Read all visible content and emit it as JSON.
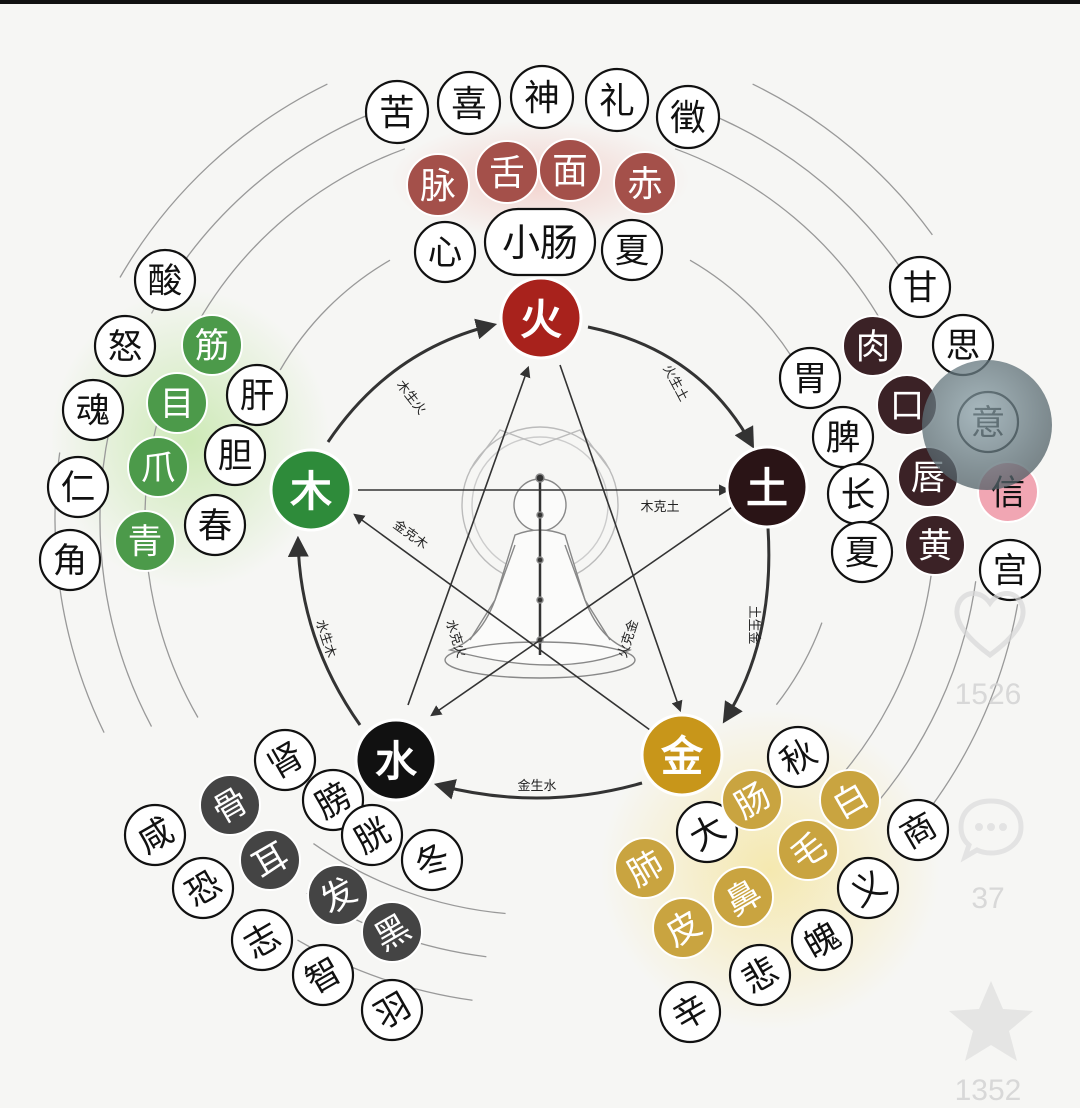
{
  "elements": {
    "fire": {
      "label": "火",
      "color": "#b3261e"
    },
    "earth": {
      "label": "土",
      "color": "#2a1416"
    },
    "metal": {
      "label": "金",
      "color": "#c8961a"
    },
    "water": {
      "label": "水",
      "color": "#111111"
    },
    "wood": {
      "label": "木",
      "color": "#2e8b3a"
    }
  },
  "arrows": {
    "fire_earth": "火生土",
    "earth_metal": "土生金",
    "metal_water": "金生水",
    "water_wood": "水生木",
    "wood_fire": "木生火",
    "wood_earth": "木克土",
    "metal_wood": "金克木",
    "water_fire": "水克火",
    "fire_metal": "火克金"
  },
  "groups": {
    "fire": {
      "outer": [
        "苦",
        "喜",
        "神",
        "礼",
        "徵"
      ],
      "mid": [
        "脉",
        "舌",
        "面",
        "赤"
      ],
      "inner": [
        "心",
        "小肠",
        "夏"
      ]
    },
    "earth": [
      "甘",
      "胃",
      "肉",
      "思",
      "脾",
      "口",
      "意",
      "长",
      "唇",
      "信",
      "夏",
      "黄",
      "宫"
    ],
    "wood": [
      "酸",
      "怒",
      "筋",
      "魂",
      "目",
      "肝",
      "仁",
      "爪",
      "胆",
      "角",
      "青",
      "春"
    ],
    "water": [
      "肾",
      "膀",
      "胱",
      "咸",
      "骨",
      "冬",
      "耳",
      "恐",
      "发",
      "志",
      "黑",
      "智",
      "羽"
    ],
    "metal": [
      "秋",
      "肺",
      "大",
      "肠",
      "白",
      "商",
      "毛",
      "皮",
      "鼻",
      "义",
      "魄",
      "悲",
      "辛"
    ]
  },
  "overlay": {
    "like_count": "1526",
    "comment_count": "37",
    "star_count": "1352",
    "heart_icon": "heart-icon",
    "comment_icon": "comment-icon",
    "star_icon": "star-icon"
  }
}
